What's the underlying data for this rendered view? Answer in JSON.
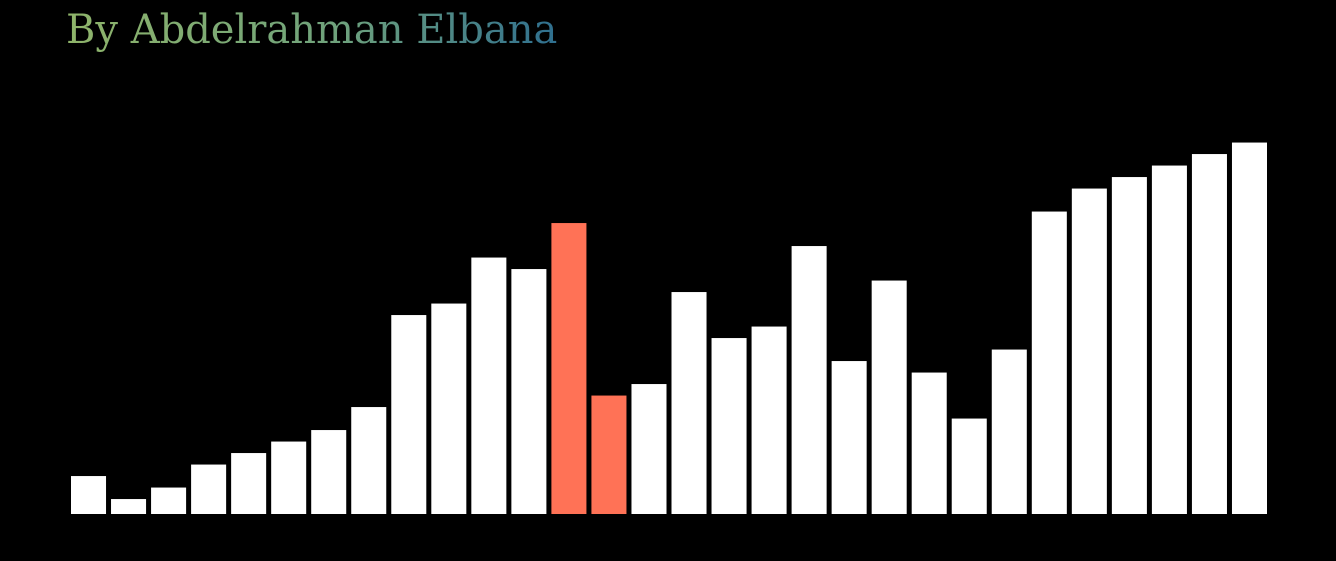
{
  "credit": "By Abdelrahman Elbana",
  "colors": {
    "background": "#000000",
    "bar_default": "#ffffff",
    "bar_highlight": "#ff7256",
    "credit_gradient": [
      "#8fb46a",
      "#6fa27c",
      "#2f6f8f"
    ]
  },
  "chart_data": {
    "type": "bar",
    "title": "",
    "xlabel": "",
    "ylabel": "",
    "grid": false,
    "legend": "none",
    "ylim": [
      0,
      32
    ],
    "values": [
      3.3,
      1.3,
      2.3,
      4.3,
      5.3,
      6.3,
      7.3,
      9.3,
      17.3,
      18.3,
      22.3,
      21.3,
      25.3,
      10.3,
      11.3,
      19.3,
      15.3,
      16.3,
      23.3,
      13.3,
      20.3,
      12.3,
      8.3,
      14.3,
      26.3,
      28.3,
      29.3,
      30.3,
      31.3,
      32.3
    ],
    "highlight_indices": [
      12,
      13
    ]
  }
}
